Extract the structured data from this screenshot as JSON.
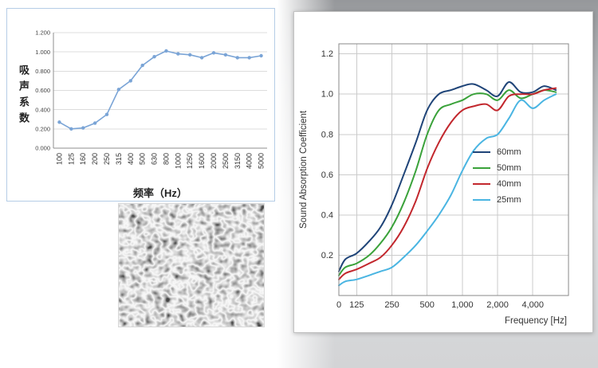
{
  "images": [
    {
      "name": "foam-micrograph",
      "description": "grayscale open-cell foam microstructure photo"
    }
  ],
  "chart_data": [
    {
      "type": "line",
      "title": "",
      "xlabel": "频率（Hz）",
      "ylabel": "吸声系数",
      "categories": [
        "100",
        "125",
        "160",
        "200",
        "250",
        "315",
        "400",
        "500",
        "630",
        "800",
        "1000",
        "1250",
        "1600",
        "2000",
        "2500",
        "3150",
        "4000",
        "5000"
      ],
      "values": [
        0.27,
        0.2,
        0.21,
        0.26,
        0.35,
        0.61,
        0.7,
        0.86,
        0.95,
        1.01,
        0.98,
        0.97,
        0.94,
        0.99,
        0.97,
        0.94,
        0.94,
        0.96
      ],
      "ylim": [
        0,
        1.2
      ],
      "yticks": [
        0,
        0.2,
        0.4,
        0.6,
        0.8,
        1.0,
        1.2
      ],
      "ytick_labels": [
        "0.000",
        "0.200",
        "0.400",
        "0.600",
        "0.800",
        "1.000",
        "1.200"
      ],
      "line_color": "#7aa4d6",
      "grid": true,
      "legend_position": "none"
    },
    {
      "type": "line",
      "title": "",
      "xlabel": "Frequency [Hz]",
      "ylabel": "Sound Absorption Coefficient",
      "x": [
        0,
        100,
        125,
        160,
        200,
        250,
        315,
        400,
        500,
        630,
        800,
        1000,
        1250,
        1600,
        2000,
        2500,
        3150,
        4000,
        5000,
        6300
      ],
      "series": [
        {
          "name": "60mm",
          "color": "#1f4478",
          "values": [
            0.12,
            0.18,
            0.21,
            0.27,
            0.34,
            0.45,
            0.6,
            0.76,
            0.92,
            1.0,
            1.02,
            1.04,
            1.05,
            1.02,
            0.99,
            1.06,
            1.01,
            1.01,
            1.04,
            1.02
          ]
        },
        {
          "name": "50mm",
          "color": "#3aa23a",
          "values": [
            0.1,
            0.14,
            0.16,
            0.2,
            0.26,
            0.34,
            0.46,
            0.62,
            0.8,
            0.92,
            0.95,
            0.97,
            1.0,
            1.0,
            0.97,
            1.02,
            0.98,
            1.0,
            1.02,
            1.01
          ]
        },
        {
          "name": "40mm",
          "color": "#c2272d",
          "values": [
            0.08,
            0.11,
            0.13,
            0.16,
            0.19,
            0.25,
            0.34,
            0.47,
            0.63,
            0.76,
            0.86,
            0.92,
            0.94,
            0.95,
            0.92,
            0.99,
            1.0,
            1.0,
            1.02,
            1.03
          ]
        },
        {
          "name": "25mm",
          "color": "#4ab5e2",
          "values": [
            0.05,
            0.07,
            0.08,
            0.1,
            0.12,
            0.14,
            0.19,
            0.25,
            0.32,
            0.4,
            0.5,
            0.62,
            0.72,
            0.78,
            0.8,
            0.88,
            0.97,
            0.93,
            0.97,
            1.0
          ]
        }
      ],
      "xticks": [
        {
          "f": 0,
          "label": "0"
        },
        {
          "f": 125,
          "label": "125"
        },
        {
          "f": 250,
          "label": "250"
        },
        {
          "f": 500,
          "label": "500"
        },
        {
          "f": 1000,
          "label": "1,000"
        },
        {
          "f": 2000,
          "label": "2,000"
        },
        {
          "f": 4000,
          "label": "4,000"
        }
      ],
      "yticks": [
        0.2,
        0.4,
        0.6,
        0.8,
        1.0,
        1.2
      ],
      "ylim": [
        0,
        1.25
      ],
      "x_log_start": 88,
      "x_span_octaves": 6.52,
      "grid": true,
      "legend_position": "center-right"
    }
  ]
}
